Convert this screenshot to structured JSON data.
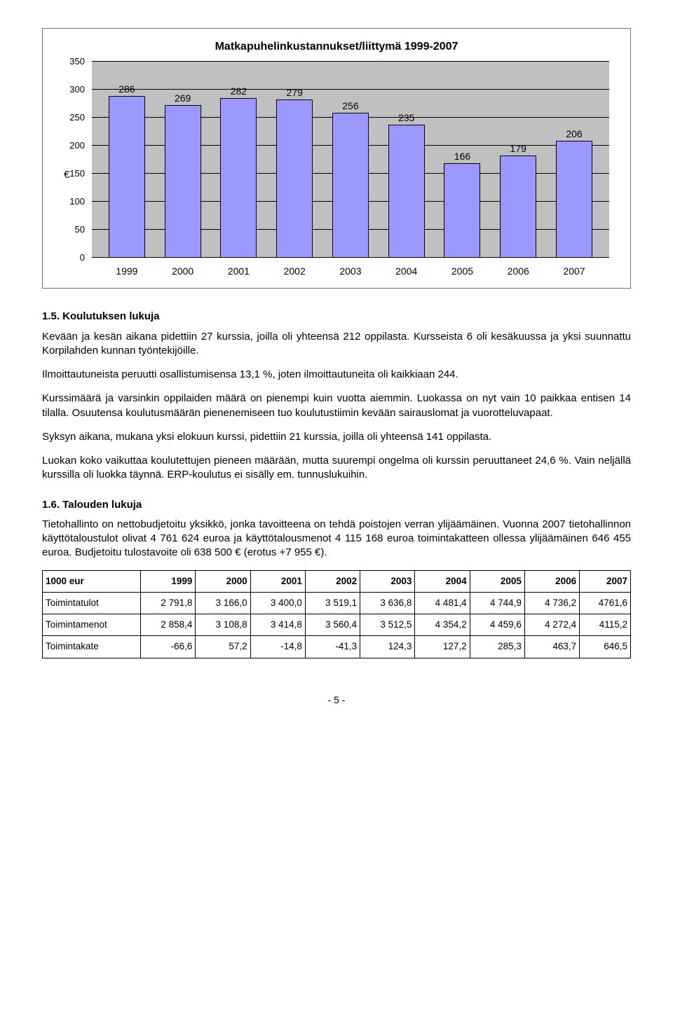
{
  "chart": {
    "title": "Matkapuhelinkustannukset/liittymä 1999-2007",
    "type": "bar",
    "y_unit": "€",
    "ylim": [
      0,
      350
    ],
    "ytick_step": 50,
    "yticks": [
      0,
      50,
      100,
      150,
      200,
      250,
      300,
      350
    ],
    "categories": [
      "1999",
      "2000",
      "2001",
      "2002",
      "2003",
      "2004",
      "2005",
      "2006",
      "2007"
    ],
    "values": [
      286,
      269,
      282,
      279,
      256,
      235,
      166,
      179,
      206
    ],
    "bar_color": "#9999ff",
    "bar_border": "#000000",
    "background_color": "#c0c0c0",
    "grid_color": "#000000",
    "label_fontsize": 14,
    "title_fontsize": 16
  },
  "sections": {
    "s15": {
      "heading": "1.5. Koulutuksen lukuja",
      "p1": "Kevään ja kesän aikana pidettiin 27 kurssia, joilla oli yhteensä 212 oppilasta. Kursseista 6 oli kesäkuussa ja yksi suunnattu Korpilahden kunnan työntekijöille.",
      "p2": "Ilmoittautuneista peruutti osallistumisensa 13,1 %, joten ilmoittautuneita oli kaikkiaan 244.",
      "p3": "Kurssimäärä ja varsinkin oppilaiden määrä on pienempi kuin vuotta aiemmin. Luokassa on nyt vain 10 paikkaa entisen 14 tilalla. Osuutensa koulutusmäärän pienenemiseen tuo koulutustiimin kevään sairauslomat ja vuorotteluvapaat.",
      "p4": "Syksyn aikana, mukana yksi elokuun kurssi, pidettiin 21 kurssia, joilla oli yhteensä 141 oppilasta.",
      "p5": "Luokan koko vaikuttaa koulutettujen pieneen määrään, mutta suurempi ongelma oli kurssin peruuttaneet 24,6 %. Vain neljällä kurssilla oli luokka täynnä. ERP-koulutus ei sisälly em. tunnuslukuihin."
    },
    "s16": {
      "heading": "1.6. Talouden lukuja",
      "p1": "Tietohallinto on nettobudjetoitu yksikkö, jonka tavoitteena on tehdä poistojen verran ylijäämäinen. Vuonna 2007 tietohallinnon käyttötaloustulot olivat 4 761 624 euroa ja käyttötalousmenot 4 115 168 euroa toimintakatteen ollessa ylijäämäinen 646 455 euroa. Budjetoitu tulostavoite oli 638 500 € (erotus +7 955 €)."
    }
  },
  "table": {
    "header": [
      "1000 eur",
      "1999",
      "2000",
      "2001",
      "2002",
      "2003",
      "2004",
      "2005",
      "2006",
      "2007"
    ],
    "rows": [
      [
        "Toimintatulot",
        "2 791,8",
        "3 166,0",
        "3 400,0",
        "3 519,1",
        "3 636,8",
        "4 481,4",
        "4 744,9",
        "4 736,2",
        "4761,6"
      ],
      [
        "Toimintamenot",
        "2 858,4",
        "3 108,8",
        "3 414,8",
        "3 560,4",
        "3 512,5",
        "4 354,2",
        "4 459,6",
        "4 272,4",
        "4115,2"
      ],
      [
        "Toimintakate",
        "-66,6",
        "57,2",
        "-14,8",
        "-41,3",
        "124,3",
        "127,2",
        "285,3",
        "463,7",
        "646,5"
      ]
    ]
  },
  "page_number": "- 5 -"
}
